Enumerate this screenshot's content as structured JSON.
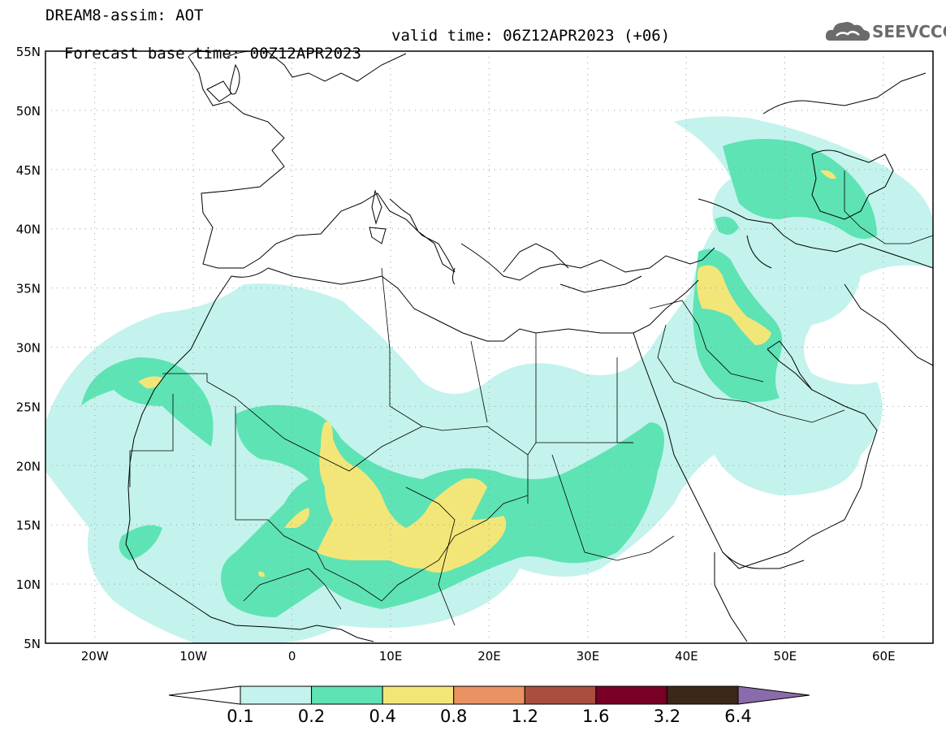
{
  "header": {
    "title": "DREAM8-assim: AOT",
    "base_time": "Forecast base time: 00Z12APR2023",
    "valid_time": "valid time: 06Z12APR2023 (+06)"
  },
  "logo": {
    "text": "SEEVCCC",
    "icon": "cloud-icon"
  },
  "map": {
    "lon_range": [
      -25,
      65
    ],
    "lat_range": [
      5,
      55
    ],
    "lat_labels": [
      "55N",
      "50N",
      "45N",
      "40N",
      "35N",
      "30N",
      "25N",
      "20N",
      "15N",
      "10N",
      "5N"
    ],
    "lon_labels": [
      "20W",
      "10W",
      "0",
      "10E",
      "20E",
      "30E",
      "40E",
      "50E",
      "60E"
    ],
    "grid": "dotted"
  },
  "colorbar": {
    "levels": [
      "0.1",
      "0.2",
      "0.4",
      "0.8",
      "1.2",
      "1.6",
      "3.2",
      "6.4"
    ],
    "colors": [
      "#ffffff",
      "#c3f3ec",
      "#5ee3b4",
      "#f3e679",
      "#ea9262",
      "#aa4f40",
      "#780026",
      "#3b2818",
      "#8a6bab"
    ]
  }
}
